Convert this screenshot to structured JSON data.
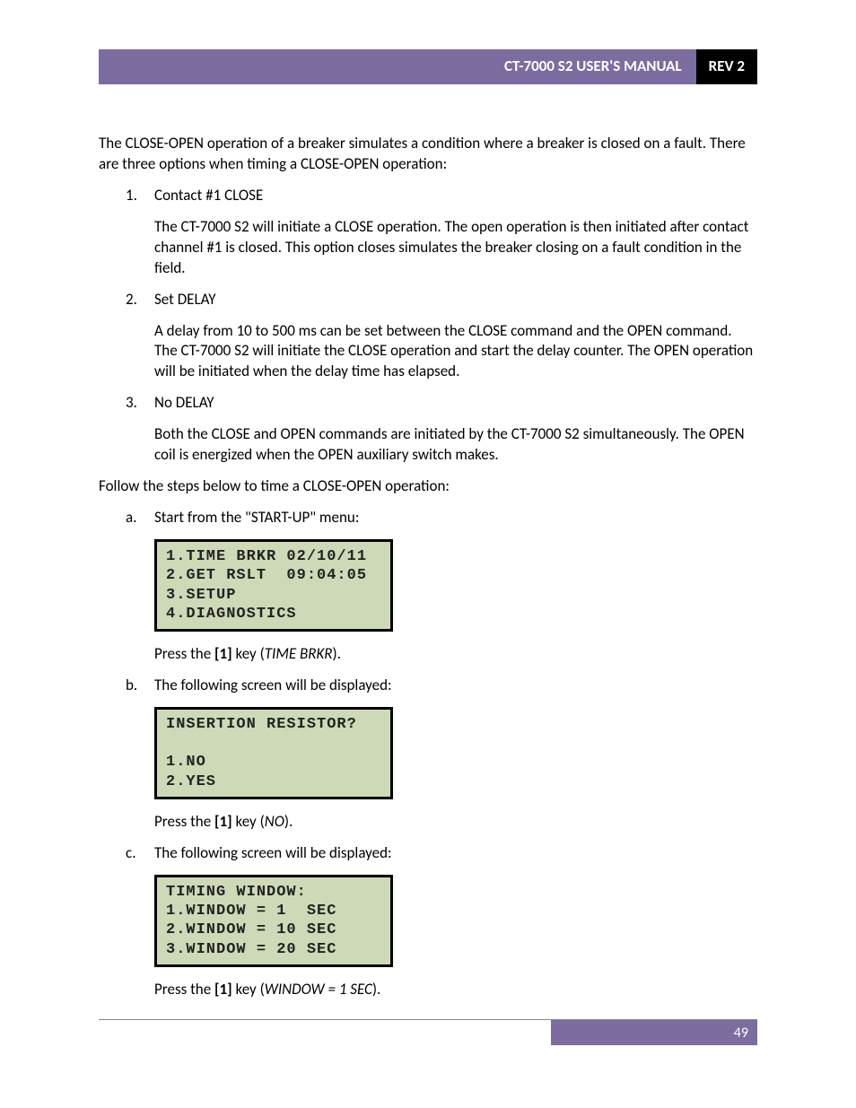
{
  "header": {
    "title": "CT-7000 S2 USER'S MANUAL",
    "rev": "REV 2"
  },
  "intro": "The CLOSE-OPEN operation of a breaker simulates a condition where a breaker is closed on a fault. There are three options when timing a CLOSE-OPEN operation:",
  "options": [
    {
      "marker": "1.",
      "title": "Contact #1 CLOSE",
      "body": "The CT-7000 S2 will initiate a CLOSE operation. The open operation is then initiated after contact channel #1 is closed. This option closes simulates the breaker closing on a fault condition in the field."
    },
    {
      "marker": "2.",
      "title": "Set DELAY",
      "body": "A delay from 10 to 500 ms can be set between the CLOSE command and the OPEN command. The CT-7000 S2 will initiate the CLOSE operation and start the delay counter. The OPEN operation will be initiated when the delay time has elapsed."
    },
    {
      "marker": "3.",
      "title": "No DELAY",
      "body": "Both the CLOSE and OPEN commands are initiated by the CT-7000 S2 simultaneously. The OPEN coil is energized when the OPEN auxiliary switch makes."
    }
  ],
  "follow": "Follow the steps below to time a CLOSE-OPEN operation:",
  "steps": [
    {
      "marker": "a.",
      "intro": "Start from the \"START-UP\" menu:",
      "lcd": "1.TIME BRKR 02/10/11\n2.GET RSLT  09:04:05\n3.SETUP\n4.DIAGNOSTICS",
      "press_pre": "Press the ",
      "press_key": "[1]",
      "press_mid": " key (",
      "press_opt": "TIME BRKR",
      "press_post": ")."
    },
    {
      "marker": "b.",
      "intro": "The following screen will be displayed:",
      "lcd": "INSERTION RESISTOR?\n\n1.NO\n2.YES",
      "press_pre": "Press the ",
      "press_key": "[1]",
      "press_mid": " key (",
      "press_opt": "NO",
      "press_post": ")."
    },
    {
      "marker": "c.",
      "intro": "The following screen will be displayed:",
      "lcd": "TIMING WINDOW:\n1.WINDOW = 1  SEC\n2.WINDOW = 10 SEC\n3.WINDOW = 20 SEC",
      "press_pre": "Press the ",
      "press_key": "[1]",
      "press_mid": " key (",
      "press_opt": "WINDOW = 1 SEC",
      "press_post": ")."
    }
  ],
  "footer": {
    "page": "49"
  },
  "colors": {
    "header_purple": "#7c6ca0",
    "header_black": "#000000",
    "lcd_bg": "#ced9b7",
    "lcd_border": "#000000",
    "text": "#000000",
    "footer_text": "#ffffff"
  }
}
